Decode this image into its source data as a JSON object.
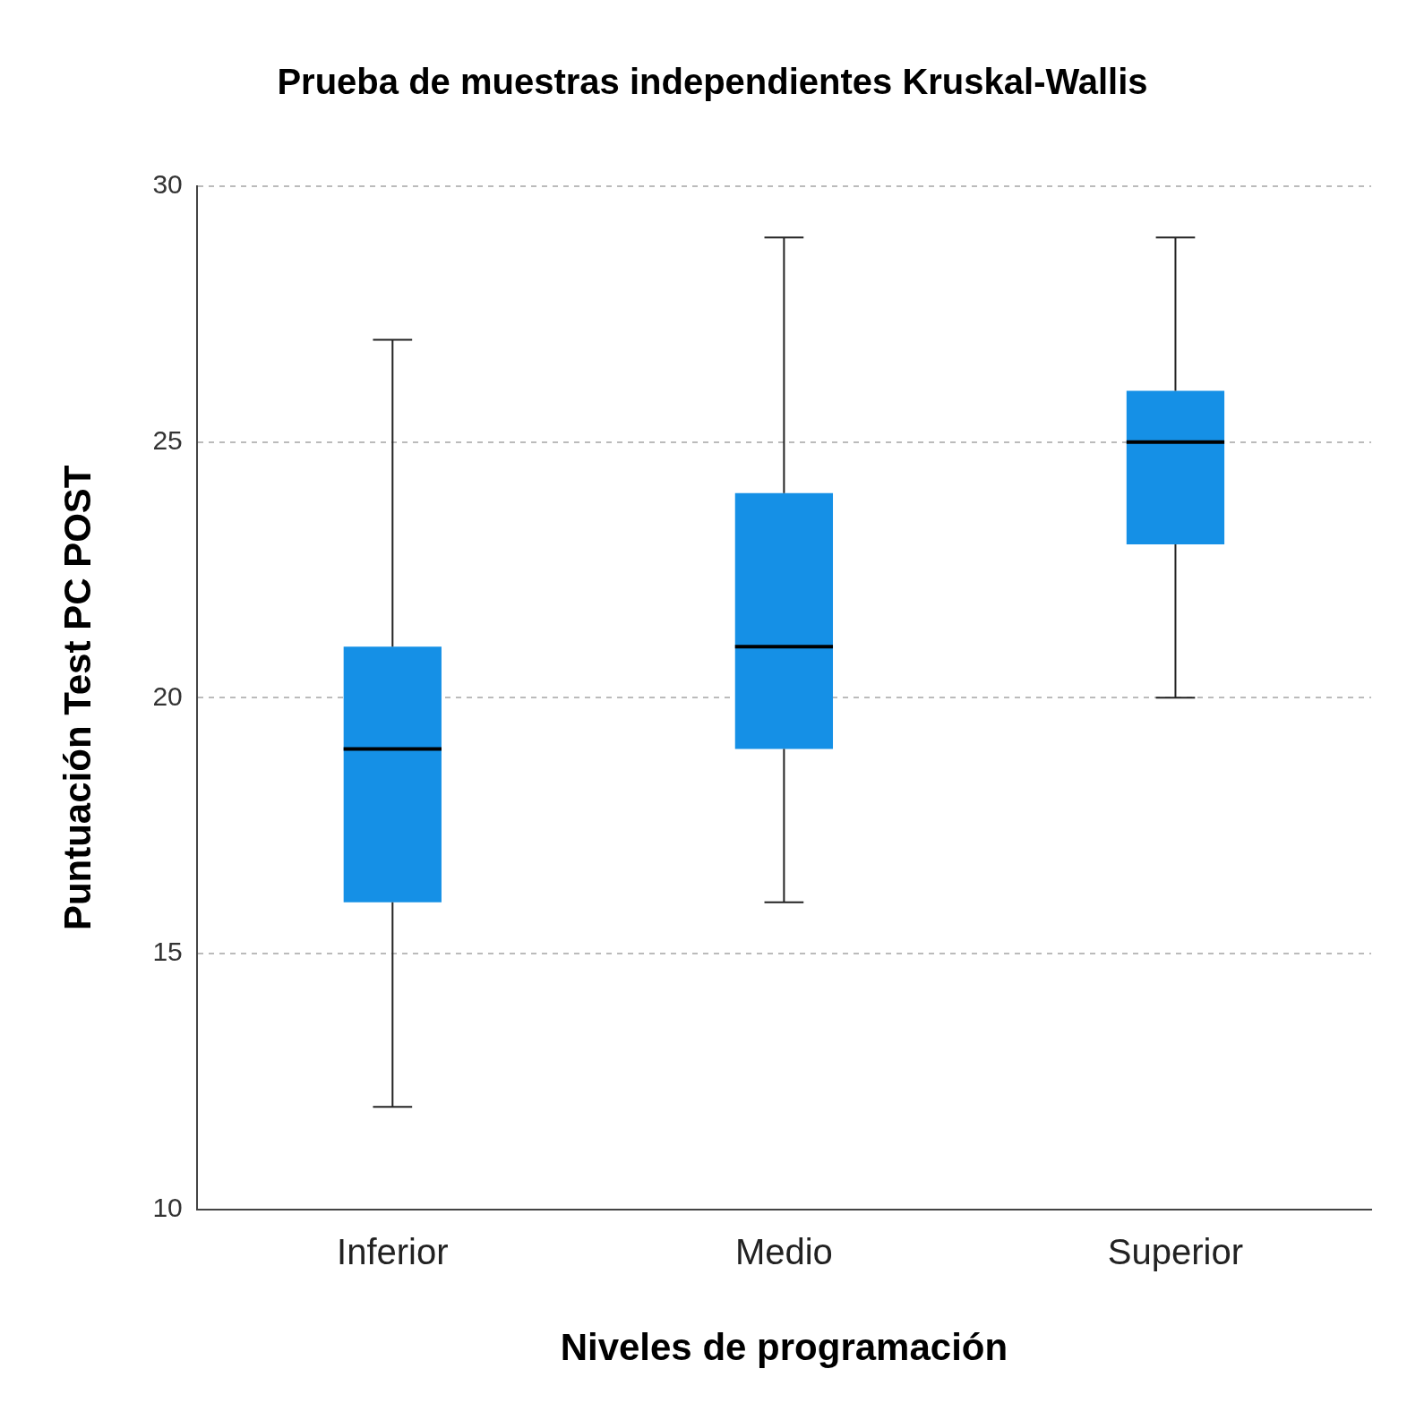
{
  "chart_data": {
    "type": "box",
    "title": "Prueba de muestras independientes Kruskal-Wallis",
    "x_label": "Niveles de programación",
    "y_label": "Puntuación Test PC POST",
    "categories": [
      "Inferior",
      "Medio",
      "Superior"
    ],
    "min": [
      12,
      16,
      20
    ],
    "q1": [
      16,
      19,
      23
    ],
    "median": [
      19,
      21,
      25
    ],
    "q3": [
      21,
      24,
      26
    ],
    "max": [
      27,
      29,
      29
    ],
    "color": "#1590e6",
    "ylim": [
      10,
      30
    ],
    "yticks": [
      10,
      15,
      20,
      25,
      30
    ],
    "grid": true
  }
}
